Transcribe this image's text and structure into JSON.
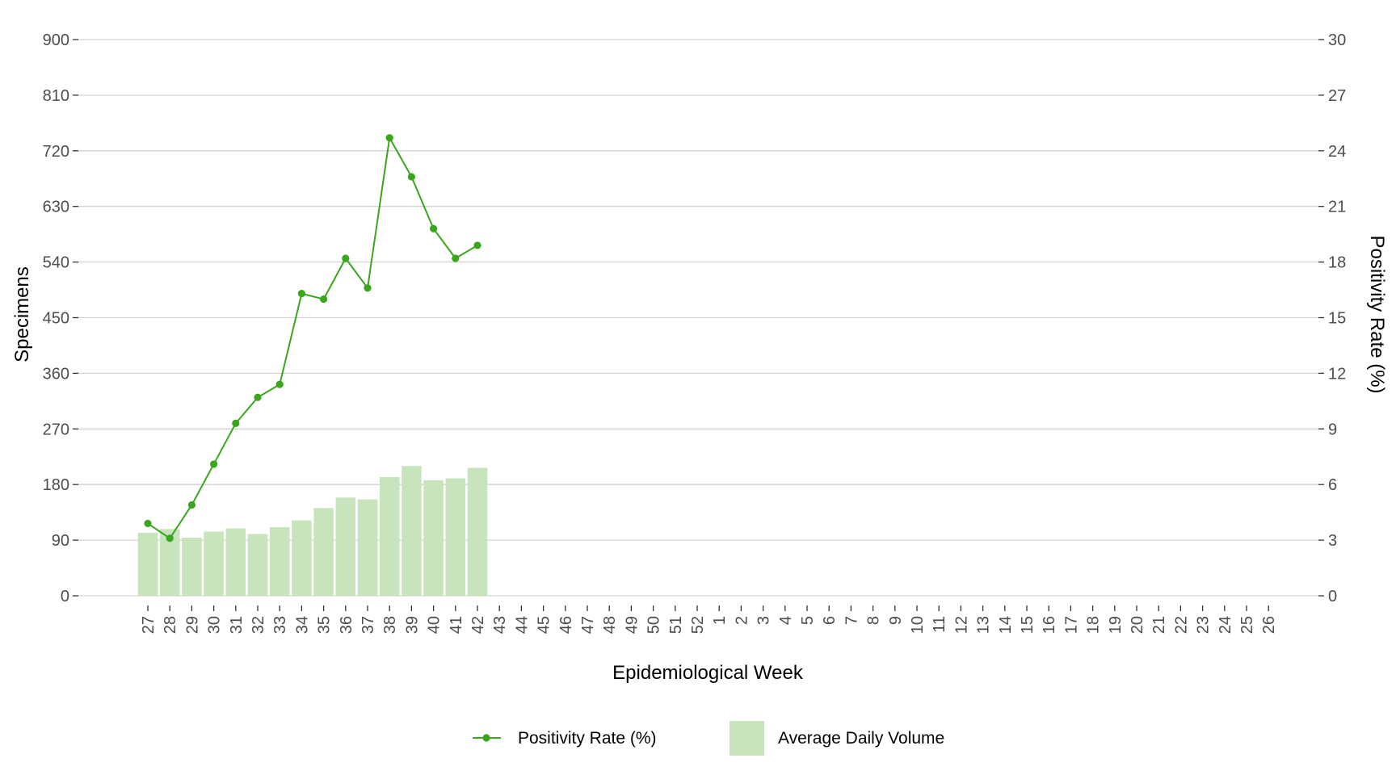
{
  "chart_data": {
    "type": "bar+line",
    "x_categories": [
      "27",
      "28",
      "29",
      "30",
      "31",
      "32",
      "33",
      "34",
      "35",
      "36",
      "37",
      "38",
      "39",
      "40",
      "41",
      "42",
      "43",
      "44",
      "45",
      "46",
      "47",
      "48",
      "49",
      "50",
      "51",
      "52",
      "1",
      "2",
      "3",
      "4",
      "5",
      "6",
      "7",
      "8",
      "9",
      "10",
      "11",
      "12",
      "13",
      "14",
      "15",
      "16",
      "17",
      "18",
      "19",
      "20",
      "21",
      "22",
      "23",
      "24",
      "25",
      "26"
    ],
    "xlabel": "Epidemiological Week",
    "ylabel_left": "Specimens",
    "ylabel_right": "Positivity Rate (%)",
    "y_left": {
      "range": [
        0,
        900
      ],
      "ticks": [
        0,
        90,
        180,
        270,
        360,
        450,
        540,
        630,
        720,
        810,
        900
      ]
    },
    "y_right": {
      "range": [
        0,
        30
      ],
      "ticks": [
        0,
        3,
        6,
        9,
        12,
        15,
        18,
        21,
        24,
        27,
        30
      ]
    },
    "grid": "horizontal",
    "legend_position": "bottom",
    "series": [
      {
        "name": "Average Daily Volume",
        "type": "bar",
        "axis": "left",
        "color": "#c8e4bc",
        "values": [
          102,
          108,
          94,
          104,
          109,
          100,
          111,
          122,
          142,
          159,
          156,
          192,
          210,
          187,
          190,
          207
        ]
      },
      {
        "name": "Positivity Rate (%)",
        "type": "line",
        "axis": "right",
        "color": "#3aa61e",
        "values": [
          3.9,
          3.1,
          4.9,
          7.1,
          9.3,
          10.7,
          11.4,
          16.3,
          16.0,
          18.2,
          16.6,
          24.7,
          22.6,
          19.8,
          18.2,
          18.9
        ]
      }
    ]
  }
}
